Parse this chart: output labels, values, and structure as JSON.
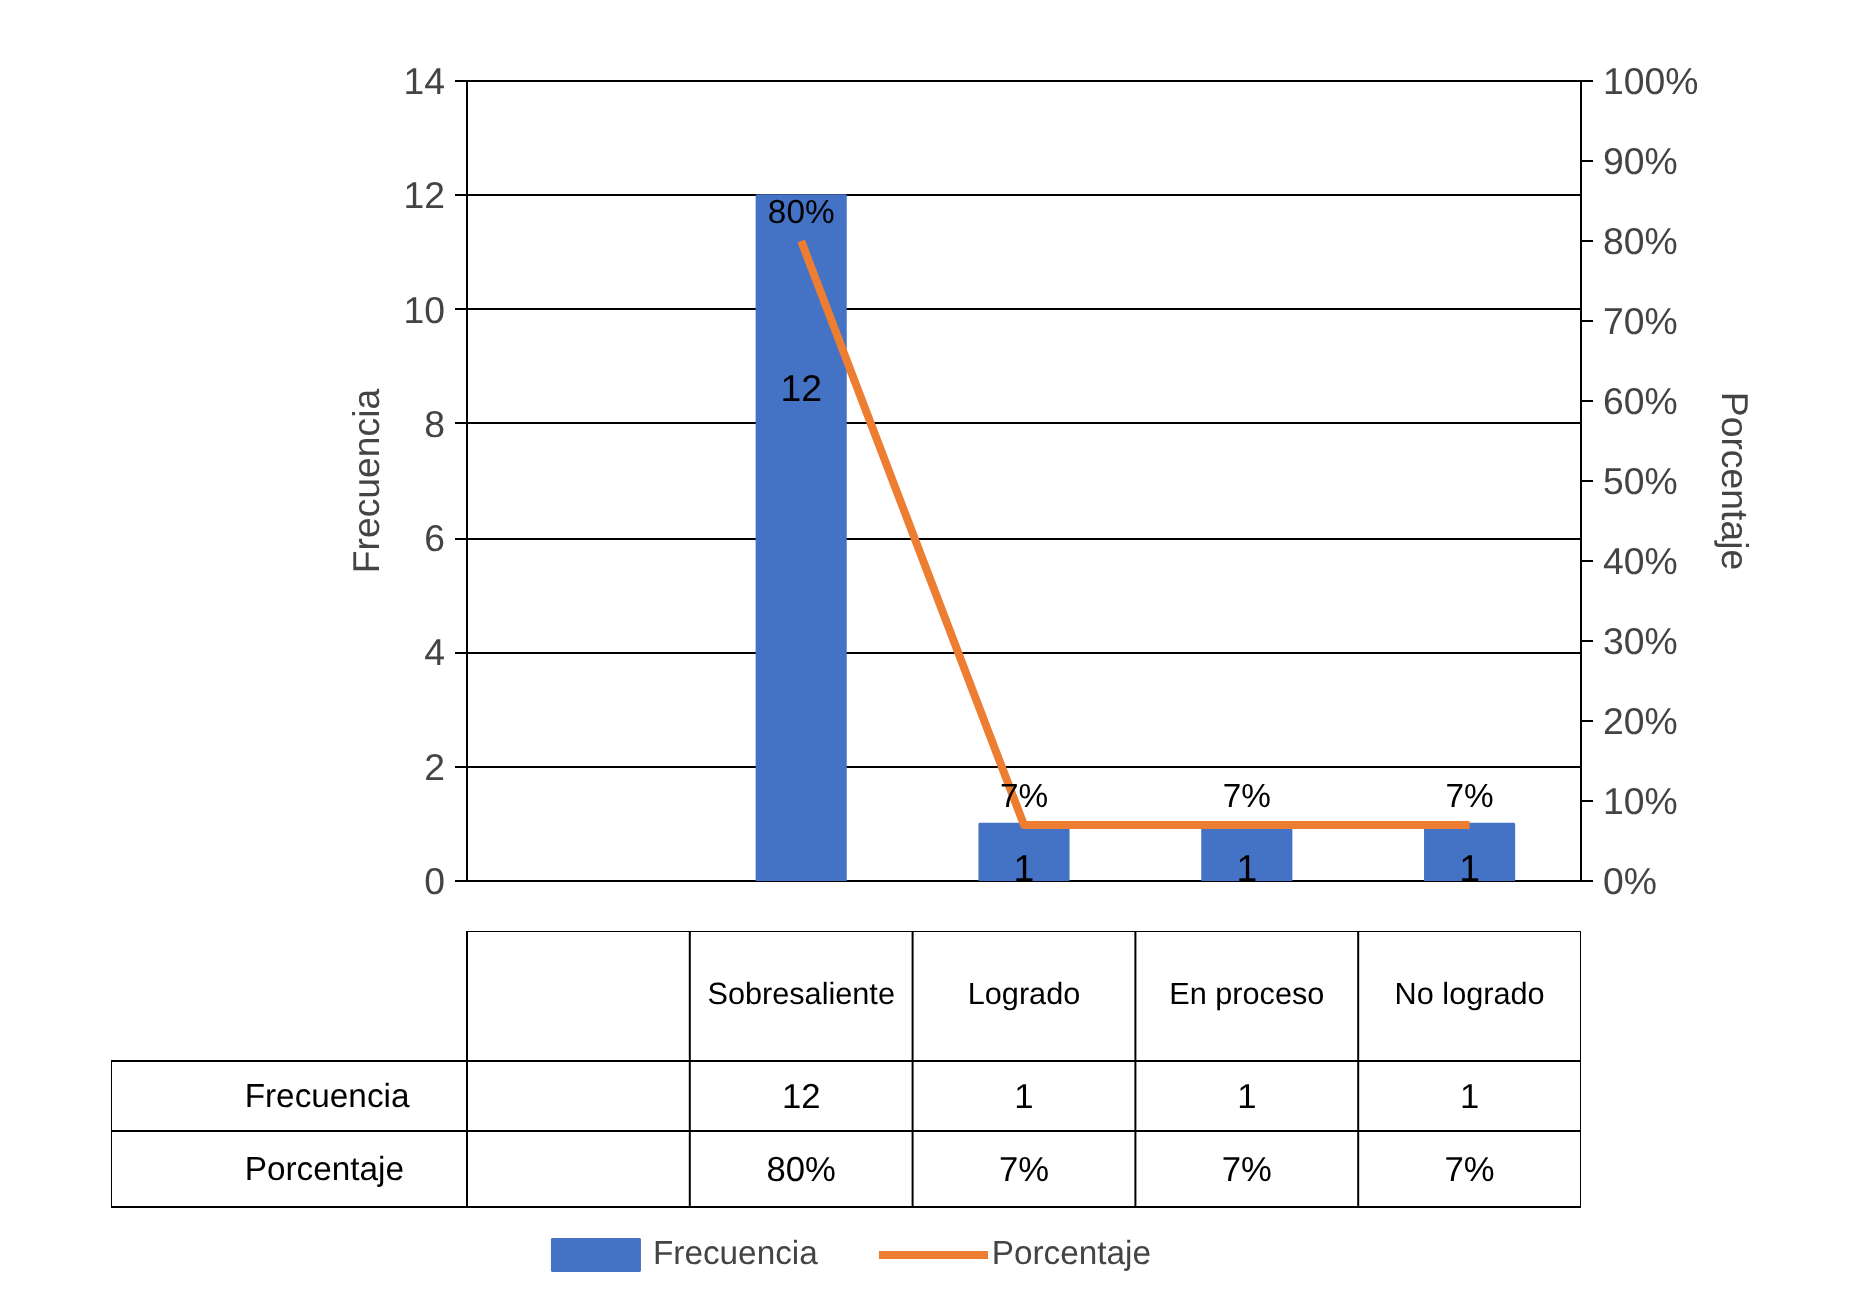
{
  "chart_data": {
    "type": "bar",
    "categories": [
      null,
      "Sobresaliente",
      "Logrado",
      "En proceso",
      "No logrado"
    ],
    "series": [
      {
        "name": "Frecuencia",
        "color": "#4472c4",
        "values": [
          null,
          12,
          1,
          1,
          1
        ],
        "value_labels": [
          null,
          "12",
          "1",
          "1",
          "1"
        ]
      },
      {
        "name": "Porcentaje",
        "type": "line",
        "axis": "y2",
        "color": "#ed7d31",
        "values": [
          null,
          80,
          7,
          7,
          7
        ],
        "value_labels": [
          null,
          "80%",
          "7%",
          "7%",
          "7%"
        ]
      }
    ],
    "ylabel": "Frecuencia",
    "y2label": "Porcentaje",
    "ylim": [
      0,
      14
    ],
    "yticks": [
      0,
      2,
      4,
      6,
      8,
      10,
      12,
      14
    ],
    "y2lim": [
      0,
      100
    ],
    "y2ticks": [
      {
        "value": 0,
        "label": "0%"
      },
      {
        "value": 10,
        "label": "10%"
      },
      {
        "value": 20,
        "label": "20%"
      },
      {
        "value": 30,
        "label": "30%"
      },
      {
        "value": 40,
        "label": "40%"
      },
      {
        "value": 50,
        "label": "50%"
      },
      {
        "value": 60,
        "label": "60%"
      },
      {
        "value": 70,
        "label": "70%"
      },
      {
        "value": 80,
        "label": "80%"
      },
      {
        "value": 90,
        "label": "90%"
      },
      {
        "value": 100,
        "label": "100%"
      }
    ],
    "grid": "y",
    "legend": "bottom",
    "line_style": "solid",
    "marker": "none"
  }
}
